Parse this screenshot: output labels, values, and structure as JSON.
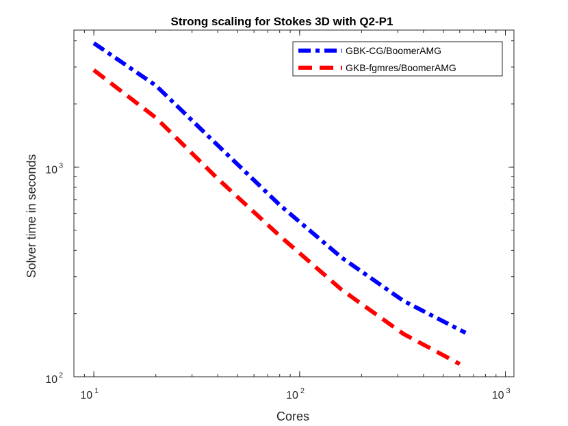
{
  "chart_data": {
    "type": "line",
    "title": "Strong scaling for Stokes 3D with Q2-P1",
    "xlabel": "Cores",
    "ylabel": "Solver time in seconds",
    "xscale": "log",
    "yscale": "log",
    "xlim": [
      8,
      1100
    ],
    "ylim": [
      100,
      4500
    ],
    "xticks": [
      {
        "value": 10,
        "base": "10",
        "exp": "1"
      },
      {
        "value": 100,
        "base": "10",
        "exp": "2"
      },
      {
        "value": 1000,
        "base": "10",
        "exp": "3"
      }
    ],
    "yticks": [
      {
        "value": 100,
        "base": "10",
        "exp": "2"
      },
      {
        "value": 1000,
        "base": "10",
        "exp": "3"
      }
    ],
    "grid": false,
    "legend_position": "top-right",
    "series": [
      {
        "name": "GBK-CG/BoomerAMG",
        "color": "#0000ff",
        "dash": "dash-dot",
        "x": [
          10,
          20,
          40,
          80,
          160,
          320,
          640
        ],
        "y": [
          3900,
          2450,
          1270,
          660,
          370,
          230,
          162
        ]
      },
      {
        "name": "GKB-fgmres/BoomerAMG",
        "color": "#ff0000",
        "dash": "dashed",
        "x": [
          10,
          20,
          40,
          80,
          160,
          320,
          600
        ],
        "y": [
          2900,
          1720,
          880,
          470,
          260,
          160,
          115
        ]
      }
    ]
  }
}
